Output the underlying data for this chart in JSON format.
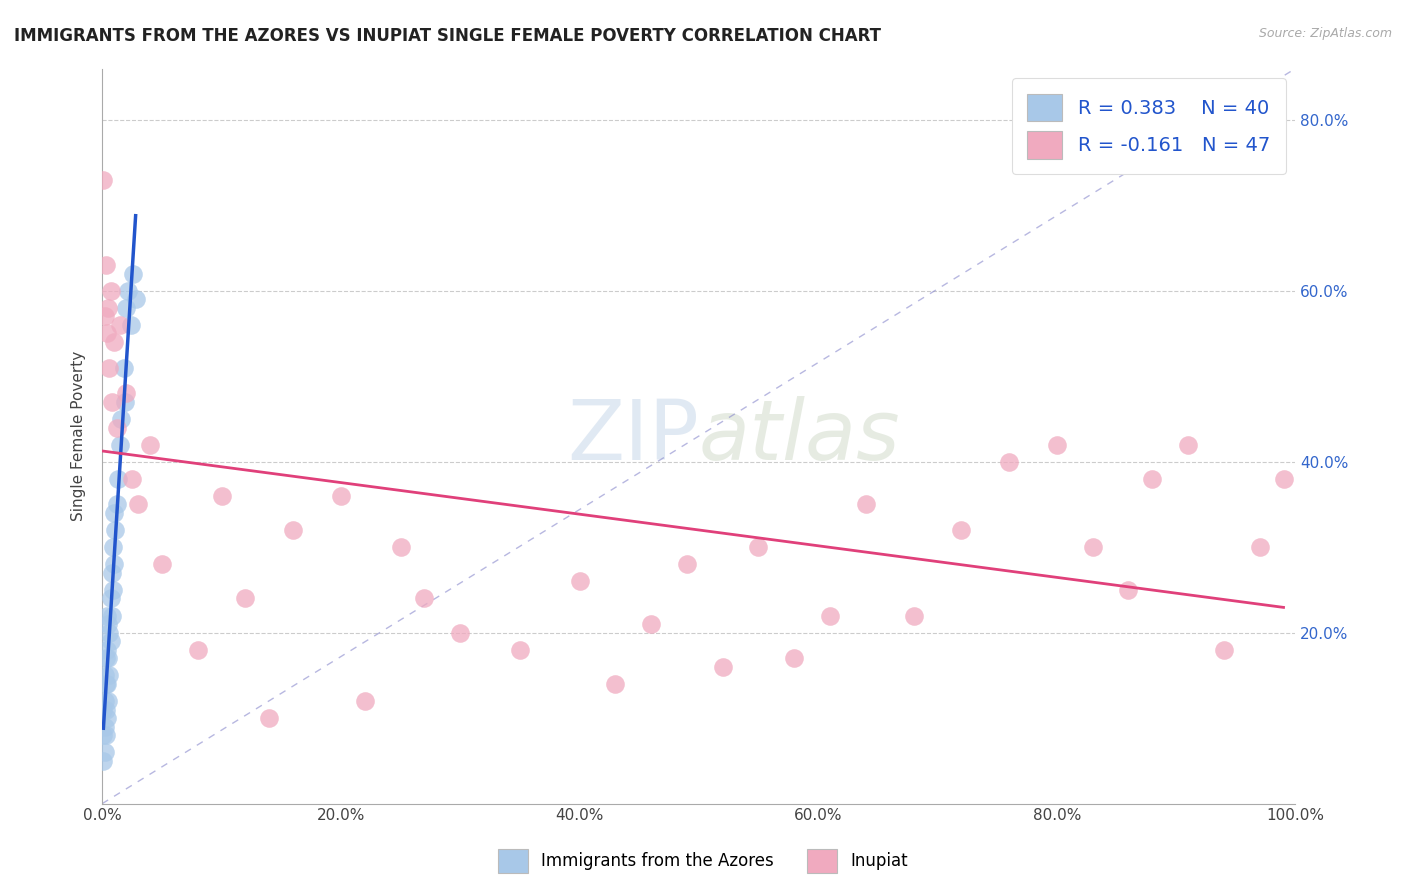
{
  "title": "IMMIGRANTS FROM THE AZORES VS INUPIAT SINGLE FEMALE POVERTY CORRELATION CHART",
  "source": "Source: ZipAtlas.com",
  "ylabel": "Single Female Poverty",
  "r_blue": 0.383,
  "n_blue": 40,
  "r_pink": -0.161,
  "n_pink": 47,
  "blue_color": "#a8c8e8",
  "pink_color": "#f0aabf",
  "trendline_blue": "#2255cc",
  "trendline_pink": "#e0407a",
  "xlim": [
    0.0,
    1.0
  ],
  "ylim": [
    0.0,
    0.86
  ],
  "xticks": [
    0.0,
    0.2,
    0.4,
    0.6,
    0.8,
    1.0
  ],
  "xtick_labels": [
    "0.0%",
    "20.0%",
    "40.0%",
    "60.0%",
    "80.0%",
    "100.0%"
  ],
  "ytick_positions": [
    0.2,
    0.4,
    0.6,
    0.8
  ],
  "ytick_labels": [
    "20.0%",
    "40.0%",
    "60.0%",
    "80.0%"
  ],
  "blue_x": [
    0.001,
    0.001,
    0.001,
    0.002,
    0.002,
    0.002,
    0.002,
    0.003,
    0.003,
    0.003,
    0.003,
    0.004,
    0.004,
    0.004,
    0.004,
    0.005,
    0.005,
    0.005,
    0.006,
    0.006,
    0.007,
    0.007,
    0.008,
    0.008,
    0.009,
    0.009,
    0.01,
    0.01,
    0.011,
    0.012,
    0.013,
    0.015,
    0.016,
    0.018,
    0.019,
    0.02,
    0.022,
    0.024,
    0.026,
    0.028
  ],
  "blue_y": [
    0.05,
    0.08,
    0.11,
    0.06,
    0.09,
    0.12,
    0.15,
    0.08,
    0.11,
    0.14,
    0.17,
    0.1,
    0.14,
    0.18,
    0.22,
    0.12,
    0.17,
    0.21,
    0.15,
    0.2,
    0.19,
    0.24,
    0.22,
    0.27,
    0.25,
    0.3,
    0.28,
    0.34,
    0.32,
    0.35,
    0.38,
    0.42,
    0.45,
    0.51,
    0.47,
    0.58,
    0.6,
    0.56,
    0.62,
    0.59
  ],
  "pink_x": [
    0.001,
    0.002,
    0.003,
    0.004,
    0.005,
    0.006,
    0.007,
    0.008,
    0.01,
    0.012,
    0.015,
    0.02,
    0.025,
    0.03,
    0.04,
    0.05,
    0.08,
    0.1,
    0.12,
    0.14,
    0.16,
    0.2,
    0.22,
    0.25,
    0.27,
    0.3,
    0.35,
    0.4,
    0.43,
    0.46,
    0.49,
    0.52,
    0.55,
    0.58,
    0.61,
    0.64,
    0.68,
    0.72,
    0.76,
    0.8,
    0.83,
    0.86,
    0.88,
    0.91,
    0.94,
    0.97,
    0.99
  ],
  "pink_y": [
    0.73,
    0.57,
    0.63,
    0.55,
    0.58,
    0.51,
    0.6,
    0.47,
    0.54,
    0.44,
    0.56,
    0.48,
    0.38,
    0.35,
    0.42,
    0.28,
    0.18,
    0.36,
    0.24,
    0.1,
    0.32,
    0.36,
    0.12,
    0.3,
    0.24,
    0.2,
    0.18,
    0.26,
    0.14,
    0.21,
    0.28,
    0.16,
    0.3,
    0.17,
    0.22,
    0.35,
    0.22,
    0.32,
    0.4,
    0.42,
    0.3,
    0.25,
    0.38,
    0.42,
    0.18,
    0.3,
    0.38
  ]
}
